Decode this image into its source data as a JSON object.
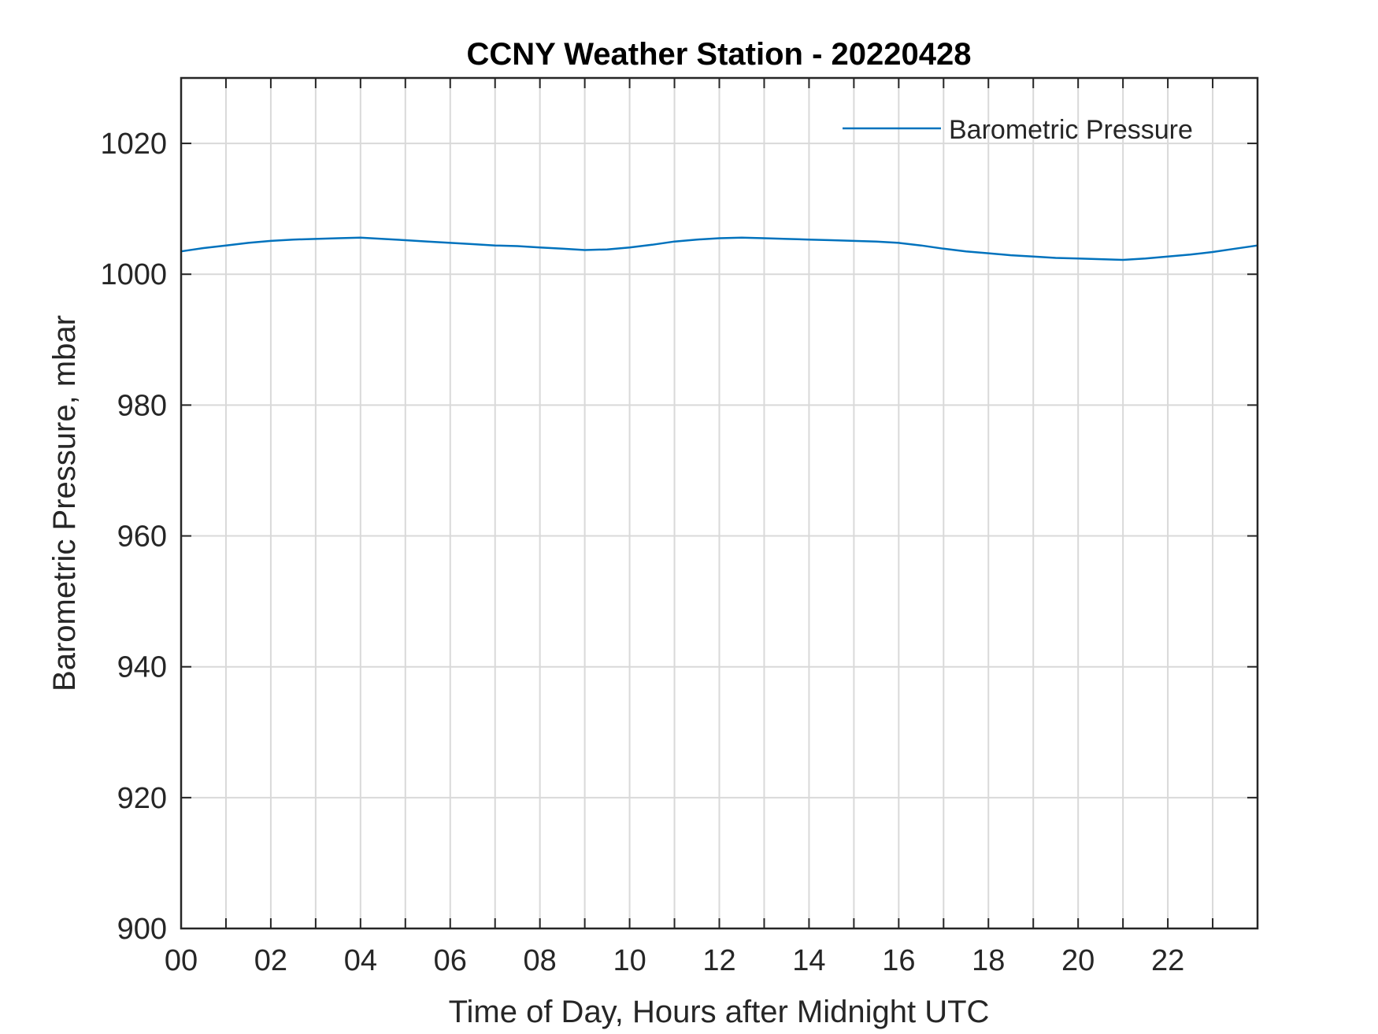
{
  "chart_data": {
    "type": "line",
    "title": "CCNY Weather Station - 20220428",
    "xlabel": "Time of Day, Hours after Midnight UTC",
    "ylabel": "Barometric Pressure, mbar",
    "xlim": [
      0,
      24
    ],
    "ylim": [
      900,
      1030
    ],
    "x_ticks": [
      "00",
      "02",
      "04",
      "06",
      "08",
      "10",
      "12",
      "14",
      "16",
      "18",
      "20",
      "22"
    ],
    "y_ticks": [
      "900",
      "920",
      "940",
      "960",
      "980",
      "1000",
      "1020"
    ],
    "grid": true,
    "legend_position": "top-right",
    "series": [
      {
        "name": "Barometric Pressure",
        "color": "#0072BD",
        "x": [
          0,
          0.5,
          1,
          1.5,
          2,
          2.5,
          3,
          3.5,
          4,
          4.5,
          5,
          5.5,
          6,
          6.5,
          7,
          7.5,
          8,
          8.5,
          9,
          9.5,
          10,
          10.5,
          11,
          11.5,
          12,
          12.5,
          13,
          13.5,
          14,
          14.5,
          15,
          15.5,
          16,
          16.5,
          17,
          17.5,
          18,
          18.5,
          19,
          19.5,
          20,
          20.5,
          21,
          21.5,
          22,
          22.5,
          23,
          23.5,
          24
        ],
        "y": [
          1003.5,
          1004.0,
          1004.4,
          1004.8,
          1005.1,
          1005.3,
          1005.4,
          1005.5,
          1005.6,
          1005.4,
          1005.2,
          1005.0,
          1004.8,
          1004.6,
          1004.4,
          1004.3,
          1004.1,
          1003.9,
          1003.7,
          1003.8,
          1004.1,
          1004.5,
          1005.0,
          1005.3,
          1005.5,
          1005.6,
          1005.5,
          1005.4,
          1005.3,
          1005.2,
          1005.1,
          1005.0,
          1004.8,
          1004.4,
          1003.9,
          1003.5,
          1003.2,
          1002.9,
          1002.7,
          1002.5,
          1002.4,
          1002.3,
          1002.2,
          1002.4,
          1002.7,
          1003.0,
          1003.4,
          1003.9,
          1004.4
        ]
      }
    ]
  }
}
